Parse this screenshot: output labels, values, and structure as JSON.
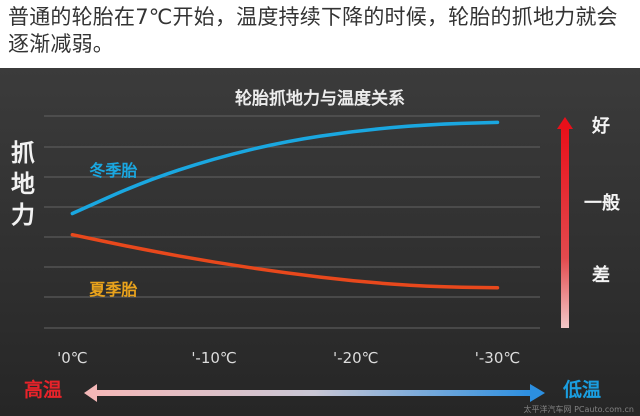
{
  "caption": "普通的轮胎在7℃开始，温度持续下降的时候，轮胎的抓地力就会逐渐减弱。",
  "colors": {
    "winter": "#1aa7e0",
    "summer": "#e8481c",
    "grid": "#5a5a5a",
    "winter_label": "#1aa7e0",
    "summer_label": "#e8a21c"
  },
  "watermark": "太平洋汽车网 PCauto.com.cn",
  "chart_data": {
    "type": "line",
    "title": "轮胎抓地力与温度关系",
    "ylabel": "抓地力",
    "x_ticks": [
      "'0℃",
      "'-10℃",
      "'-20℃",
      "'-30℃"
    ],
    "x": [
      0,
      -10,
      -20,
      -30
    ],
    "xlim": [
      2,
      -33
    ],
    "ylim": [
      0,
      10
    ],
    "y_grades": [
      "好",
      "一般",
      "差"
    ],
    "y_grade_values": [
      9.6,
      6.0,
      2.6
    ],
    "series": [
      {
        "name": "冬季胎",
        "x": [
          0,
          -5,
          -10,
          -15,
          -20,
          -25,
          -30
        ],
        "values": [
          5.4,
          6.9,
          8.0,
          8.8,
          9.3,
          9.6,
          9.7
        ]
      },
      {
        "name": "夏季胎",
        "x": [
          0,
          -5,
          -10,
          -15,
          -20,
          -25,
          -30
        ],
        "values": [
          4.4,
          3.7,
          3.1,
          2.6,
          2.2,
          1.95,
          1.9
        ]
      }
    ],
    "axis_extremes": {
      "left": "高温",
      "right": "低温"
    },
    "grid": true
  }
}
